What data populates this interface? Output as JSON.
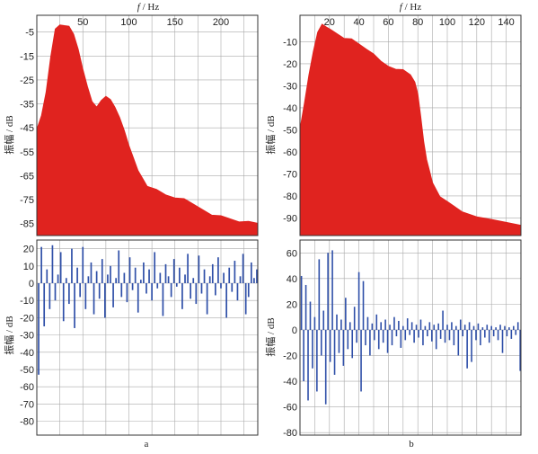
{
  "chart_data": [
    {
      "id": "a_spectrum",
      "type": "area",
      "xlabel_italic": "f",
      "xlabel_unit": " / Hz",
      "ylabel": "振幅 / dB",
      "xlim": [
        0,
        240
      ],
      "ylim": [
        -90,
        2
      ],
      "xticks": [
        50,
        100,
        150,
        200
      ],
      "yticks": [
        -5,
        -15,
        -25,
        -35,
        -45,
        -55,
        -65,
        -75,
        -85
      ],
      "grid": true,
      "color": "#e0231f",
      "x": [
        0,
        5,
        10,
        15,
        20,
        25,
        30,
        35,
        40,
        45,
        50,
        55,
        60,
        65,
        70,
        75,
        80,
        85,
        90,
        95,
        100,
        105,
        110,
        115,
        120,
        130,
        140,
        150,
        160,
        170,
        180,
        190,
        200,
        210,
        220,
        230,
        240
      ],
      "y": [
        -46,
        -40,
        -30,
        -15,
        -4,
        -2,
        -2,
        -3,
        -6,
        -12,
        -20,
        -28,
        -34,
        -36,
        -34,
        -32,
        -33,
        -36,
        -41,
        -46,
        -52,
        -58,
        -63,
        -66,
        -69,
        -71,
        -73,
        -74,
        -75,
        -77,
        -79,
        -81,
        -82,
        -83,
        -84,
        -84.5,
        -85
      ]
    },
    {
      "id": "a_diff",
      "type": "bar",
      "xlabel": "a",
      "ylabel": "振幅 / dB",
      "xlim": [
        0,
        240
      ],
      "ylim": [
        -88,
        25
      ],
      "yticks": [
        20,
        10,
        0,
        -10,
        -20,
        -30,
        -40,
        -50,
        -60,
        -70,
        -80
      ],
      "grid": true,
      "color": "#2f4fa8",
      "x": [
        2,
        5,
        8,
        11,
        14,
        17,
        20,
        23,
        26,
        29,
        32,
        35,
        38,
        41,
        44,
        47,
        50,
        53,
        56,
        59,
        62,
        65,
        68,
        71,
        74,
        77,
        80,
        83,
        86,
        89,
        92,
        95,
        98,
        101,
        104,
        107,
        110,
        113,
        116,
        119,
        122,
        125,
        128,
        131,
        134,
        137,
        140,
        143,
        146,
        149,
        152,
        155,
        158,
        161,
        164,
        167,
        170,
        173,
        176,
        179,
        182,
        185,
        188,
        191,
        194,
        197,
        200,
        203,
        206,
        209,
        212,
        215,
        218,
        221,
        224,
        227,
        230,
        233,
        236,
        239
      ],
      "y": [
        -53,
        21,
        -25,
        8,
        -15,
        22,
        -10,
        5,
        18,
        -22,
        3,
        -12,
        20,
        -26,
        9,
        -8,
        21,
        -15,
        4,
        12,
        -18,
        7,
        -9,
        14,
        -20,
        5,
        10,
        -14,
        3,
        19,
        -8,
        6,
        -11,
        15,
        -4,
        9,
        -17,
        2,
        12,
        -6,
        8,
        -10,
        18,
        -3,
        6,
        -19,
        11,
        4,
        -8,
        14,
        -2,
        9,
        -15,
        5,
        17,
        -9,
        3,
        -12,
        16,
        -6,
        8,
        -18,
        4,
        11,
        -7,
        15,
        -3,
        6,
        -20,
        9,
        -5,
        13,
        -10,
        4,
        17,
        -18,
        -8,
        12,
        3,
        8
      ]
    },
    {
      "id": "b_spectrum",
      "type": "area",
      "xlabel_italic": "f",
      "xlabel_unit": " / Hz",
      "ylabel": "振幅 / dB",
      "xlim": [
        0,
        150
      ],
      "ylim": [
        -98,
        2
      ],
      "xticks": [
        20,
        40,
        60,
        80,
        100,
        120,
        140
      ],
      "yticks": [
        -10,
        -20,
        -30,
        -40,
        -50,
        -60,
        -70,
        -80,
        -90
      ],
      "grid": true,
      "color": "#e0231f",
      "x": [
        0,
        3,
        6,
        9,
        12,
        15,
        18,
        21,
        24,
        27,
        30,
        35,
        40,
        45,
        50,
        55,
        60,
        65,
        70,
        75,
        78,
        80,
        82,
        84,
        86,
        88,
        90,
        95,
        100,
        105,
        110,
        120,
        130,
        140,
        150
      ],
      "y": [
        -50,
        -38,
        -25,
        -14,
        -6,
        -2,
        -3,
        -5,
        -6,
        -7,
        -8,
        -9,
        -11,
        -13,
        -16,
        -19,
        -21,
        -22,
        -23,
        -25,
        -28,
        -34,
        -44,
        -55,
        -63,
        -69,
        -74,
        -80,
        -83,
        -85,
        -87,
        -89,
        -91,
        -92,
        -93
      ]
    },
    {
      "id": "b_diff",
      "type": "bar",
      "xlabel": "b",
      "ylabel": "振幅 / dB",
      "xlim": [
        0,
        150
      ],
      "ylim": [
        -82,
        70
      ],
      "yticks": [
        60,
        40,
        20,
        0,
        -20,
        -40,
        -60,
        -80
      ],
      "grid": true,
      "color": "#2f4fa8",
      "x": [
        1,
        2.5,
        4,
        5.5,
        7,
        8.5,
        10,
        11.5,
        13,
        14.5,
        16,
        17.5,
        19,
        20.5,
        22,
        23.5,
        25,
        26.5,
        28,
        29.5,
        31,
        32.5,
        34,
        35.5,
        37,
        38.5,
        40,
        41.5,
        43,
        44.5,
        46,
        47.5,
        49,
        50.5,
        52,
        53.5,
        55,
        56.5,
        58,
        59.5,
        61,
        62.5,
        64,
        65.5,
        67,
        68.5,
        70,
        71.5,
        73,
        74.5,
        76,
        77.5,
        79,
        80.5,
        82,
        83.5,
        85,
        86.5,
        88,
        89.5,
        91,
        92.5,
        94,
        95.5,
        97,
        98.5,
        100,
        101.5,
        103,
        104.5,
        106,
        107.5,
        109,
        110.5,
        112,
        113.5,
        115,
        116.5,
        118,
        119.5,
        121,
        122.5,
        124,
        125.5,
        127,
        128.5,
        130,
        131.5,
        133,
        134.5,
        136,
        137.5,
        139,
        140.5,
        142,
        143.5,
        145,
        146.5,
        148,
        149.5
      ],
      "y": [
        42,
        -40,
        35,
        -55,
        22,
        -30,
        10,
        -48,
        55,
        -20,
        15,
        -58,
        60,
        -25,
        62,
        -35,
        12,
        -18,
        8,
        -28,
        25,
        -15,
        6,
        -22,
        18,
        -10,
        45,
        -48,
        38,
        -12,
        10,
        -20,
        5,
        -8,
        12,
        -15,
        6,
        -10,
        8,
        -18,
        4,
        -12,
        10,
        -5,
        7,
        -14,
        3,
        -8,
        9,
        -4,
        6,
        -10,
        4,
        -6,
        8,
        -12,
        3,
        -5,
        6,
        -9,
        4,
        -15,
        5,
        -7,
        15,
        -10,
        4,
        -8,
        6,
        -12,
        3,
        -20,
        8,
        -5,
        4,
        -30,
        6,
        -25,
        3,
        -8,
        5,
        -12,
        2,
        -6,
        4,
        -10,
        3,
        -5,
        2,
        -8,
        4,
        -18,
        3,
        -5,
        2,
        -7,
        3,
        -4,
        6,
        -32
      ]
    }
  ]
}
